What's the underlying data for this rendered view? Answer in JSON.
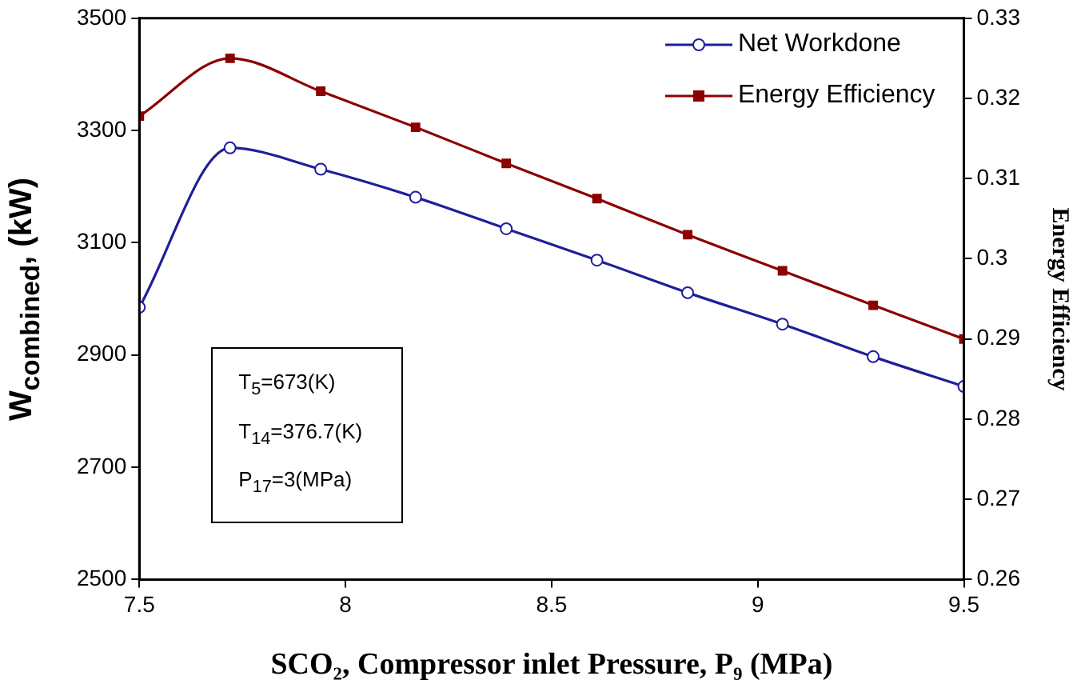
{
  "chart_data": {
    "type": "line",
    "xlabel": "SCO₂, Compressor inlet Pressure, P₉ (MPa)",
    "ylabel": "W$_{combined}$, (kW)",
    "y2label": "Energy Efficiency",
    "x": [
      7.5,
      7.72,
      7.94,
      8.17,
      8.39,
      8.61,
      8.83,
      9.06,
      9.28,
      9.5
    ],
    "series": [
      {
        "name": "Net Workdone",
        "color": "#1f1f9a",
        "marker": "circle",
        "values": [
          2985,
          3269,
          3231,
          3181,
          3125,
          3069,
          3011,
          2955,
          2897,
          2844
        ]
      },
      {
        "name": "Energy Efficiency",
        "color": "#8b0000",
        "marker": "square",
        "axis": "y2",
        "values": [
          0.3178,
          0.325,
          0.3209,
          0.3164,
          0.3119,
          0.3075,
          0.303,
          0.2985,
          0.2942,
          0.29
        ]
      }
    ],
    "xlim": [
      7.5,
      9.5
    ],
    "xticks": [
      7.5,
      8,
      8.5,
      9,
      9.5
    ],
    "ylim": [
      2500,
      3500
    ],
    "yticks": [
      2500,
      2700,
      2900,
      3100,
      3300,
      3500
    ],
    "y2lim": [
      0.26,
      0.33
    ],
    "y2ticks": [
      0.26,
      0.27,
      0.28,
      0.29,
      0.3,
      0.31,
      0.32,
      0.33
    ],
    "grid": false,
    "legend": "top right",
    "annotations": [
      "T$_{5}$=673(K)",
      "T$_{14}$=376.7(K)",
      "P$_{17}$=3(MPa)"
    ]
  }
}
